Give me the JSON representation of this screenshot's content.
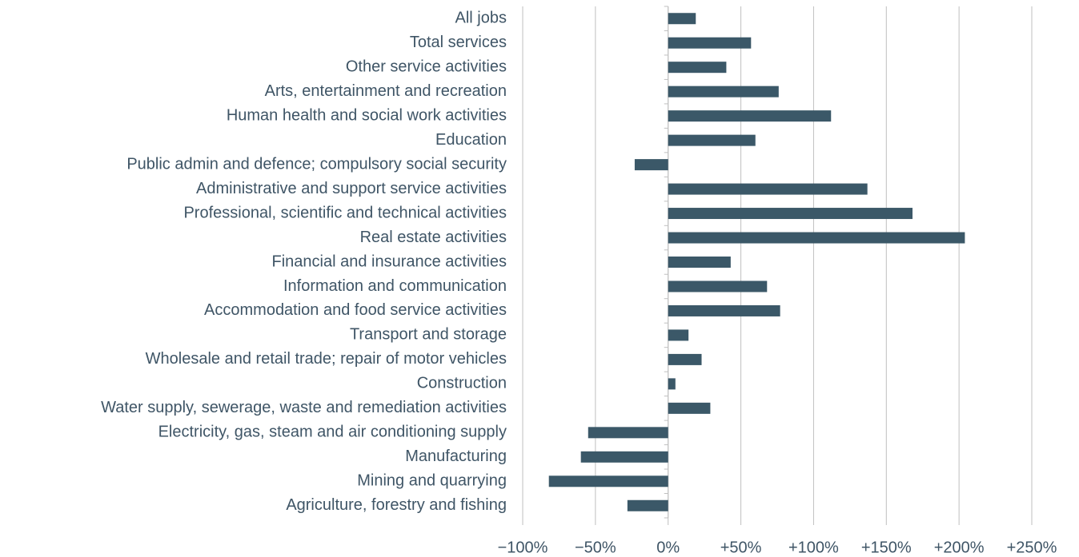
{
  "chart_data": {
    "type": "bar",
    "orientation": "horizontal",
    "categories": [
      "All jobs",
      "Total services",
      "Other service activities",
      "Arts, entertainment and recreation",
      "Human health and social work activities",
      "Education",
      "Public admin and defence; compulsory social security",
      "Administrative and support service activities",
      "Professional, scientific and technical activities",
      "Real estate activities",
      "Financial and insurance activities",
      "Information and communication",
      "Accommodation and food service activities",
      "Transport and storage",
      "Wholesale and retail trade; repair of motor vehicles",
      "Construction",
      "Water supply, sewerage, waste and remediation activities",
      "Electricity, gas, steam and air conditioning supply",
      "Manufacturing",
      "Mining and quarrying",
      "Agriculture, forestry and fishing"
    ],
    "values": [
      19,
      57,
      40,
      76,
      112,
      60,
      -23,
      137,
      168,
      204,
      43,
      68,
      77,
      14,
      23,
      5,
      29,
      -55,
      -60,
      -82,
      -28
    ],
    "color": "#3b5868",
    "xlim": [
      -100,
      250
    ],
    "xticks": [
      {
        "value": -100,
        "label": "−100%"
      },
      {
        "value": -50,
        "label": "−50%"
      },
      {
        "value": 0,
        "label": "0%"
      },
      {
        "value": 50,
        "label": "+50%"
      },
      {
        "value": 100,
        "label": "+100%"
      },
      {
        "value": 150,
        "label": "+150%"
      },
      {
        "value": 200,
        "label": "+200%"
      },
      {
        "value": 250,
        "label": "+250%"
      }
    ],
    "grid": true
  }
}
